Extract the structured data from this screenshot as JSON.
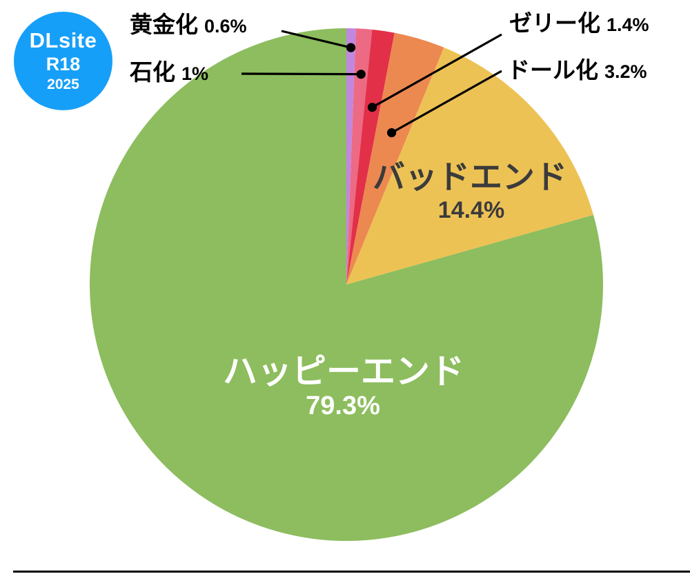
{
  "badge": {
    "brand": "DLsite",
    "rating": "R18",
    "year": "2025",
    "bg_color": "#169ff8",
    "text_color": "#ffffff"
  },
  "chart_data": {
    "type": "pie",
    "title": "",
    "unit": "%",
    "direction": "clockwise",
    "start_angle_deg": 0,
    "legend": "none",
    "series": [
      {
        "key": "gold",
        "name": "黄金化",
        "value": 0.6,
        "pct_label": "0.6%",
        "color": "#c287de",
        "label_style": "callout"
      },
      {
        "key": "stone",
        "name": "石化",
        "value": 1,
        "pct_label": "1%",
        "color": "#ec6a83",
        "label_style": "callout"
      },
      {
        "key": "jelly",
        "name": "ゼリー化",
        "value": 1.4,
        "pct_label": "1.4%",
        "color": "#e23048",
        "label_style": "callout"
      },
      {
        "key": "doll",
        "name": "ドール化",
        "value": 3.2,
        "pct_label": "3.2%",
        "color": "#ec8950",
        "label_style": "callout"
      },
      {
        "key": "bad-end",
        "name": "バッドエンド",
        "value": 14.4,
        "pct_label": "14.4%",
        "color": "#edc255",
        "label_style": "inside-dark"
      },
      {
        "key": "happy-end",
        "name": "ハッピーエンド",
        "value": 79.3,
        "pct_label": "79.3%",
        "color": "#8dbd5e",
        "label_style": "inside-light"
      }
    ]
  }
}
